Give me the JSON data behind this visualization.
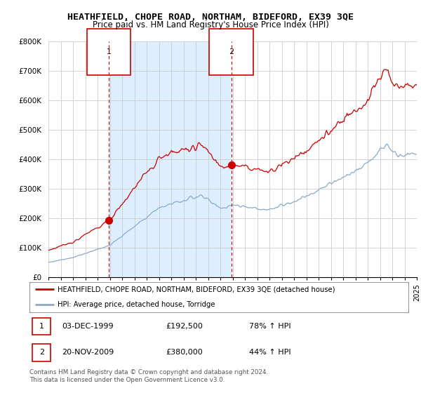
{
  "title": "HEATHFIELD, CHOPE ROAD, NORTHAM, BIDEFORD, EX39 3QE",
  "subtitle": "Price paid vs. HM Land Registry's House Price Index (HPI)",
  "ylim": [
    0,
    800000
  ],
  "yticks": [
    0,
    100000,
    200000,
    300000,
    400000,
    500000,
    600000,
    700000,
    800000
  ],
  "ytick_labels": [
    "£0",
    "£100K",
    "£200K",
    "£300K",
    "£400K",
    "£500K",
    "£600K",
    "£700K",
    "£800K"
  ],
  "sale1_date": 1999.92,
  "sale1_price": 192500,
  "sale1_label": "1",
  "sale2_date": 2009.9,
  "sale2_price": 380000,
  "sale2_label": "2",
  "red_line_color": "#cc0000",
  "blue_line_color": "#88aacc",
  "vline_color": "#cc0000",
  "grid_color": "#cccccc",
  "shade_color": "#ddeeff",
  "background_color": "#ffffff",
  "legend_label_red": "HEATHFIELD, CHOPE ROAD, NORTHAM, BIDEFORD, EX39 3QE (detached house)",
  "legend_label_blue": "HPI: Average price, detached house, Torridge",
  "table_row1": [
    "1",
    "03-DEC-1999",
    "£192,500",
    "78% ↑ HPI"
  ],
  "table_row2": [
    "2",
    "20-NOV-2009",
    "£380,000",
    "44% ↑ HPI"
  ],
  "footer": "Contains HM Land Registry data © Crown copyright and database right 2024.\nThis data is licensed under the Open Government Licence v3.0.",
  "title_fontsize": 9.5,
  "subtitle_fontsize": 8.5,
  "xstart": 1995,
  "xend": 2025
}
